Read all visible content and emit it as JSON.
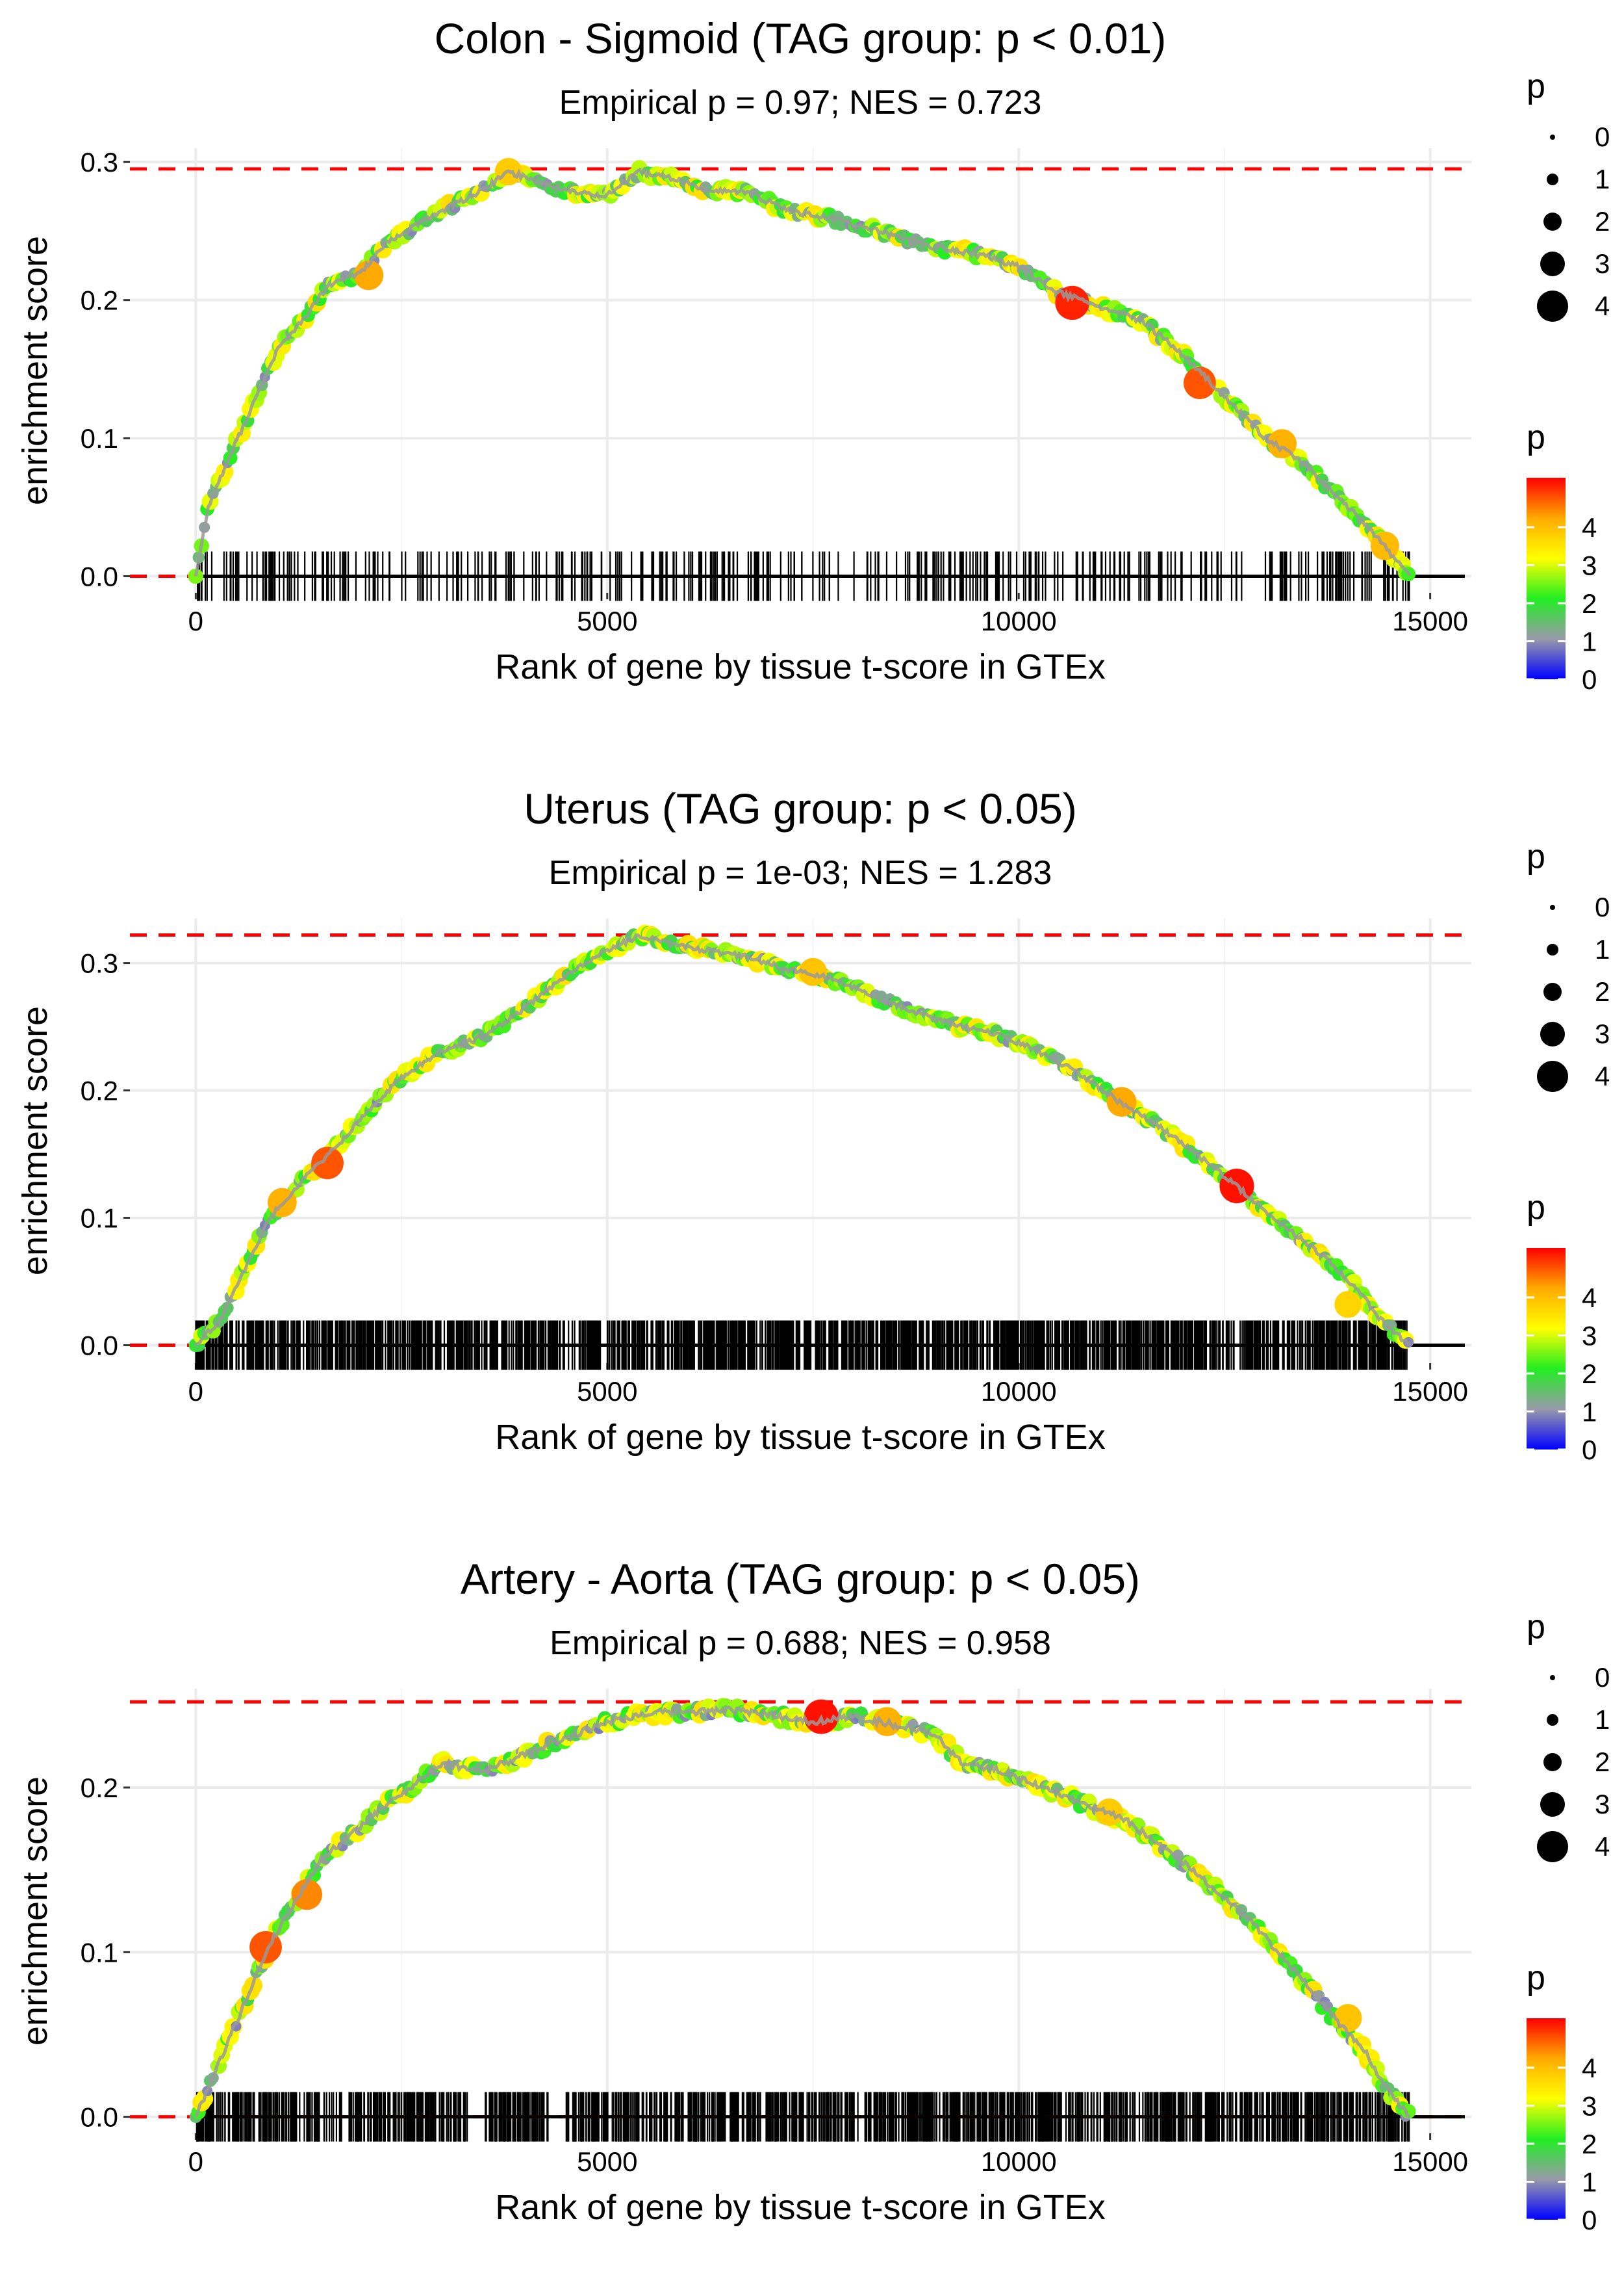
{
  "figure": {
    "description_kind": "three stacked GSEA-style enrichment plots"
  },
  "colors": {
    "gridline": "#ebebeb",
    "threshold_line": "#ff0000",
    "baseline": "#000000",
    "rug": "#000000",
    "trace_line": "#9a9a9a",
    "colorbar_stops": [
      "#0000ff",
      "#9999aa",
      "#22ee22",
      "#ffff00",
      "#ffaa00",
      "#ff0000"
    ]
  },
  "chart_data": [
    {
      "type": "line",
      "title": "Colon - Sigmoid (TAG group: p < 0.01)",
      "subtitle": "Empirical p = 0.97; NES = 0.723",
      "xlabel": "Rank of gene by tissue t-score in GTEx",
      "ylabel": "enrichment score",
      "xlim": [
        -800,
        15500
      ],
      "ylim": [
        -0.012,
        0.31
      ],
      "xticks": [
        0,
        5000,
        10000,
        15000
      ],
      "xtick_labels": [
        "0",
        "5000",
        "10000",
        "15000"
      ],
      "yticks": [
        0.0,
        0.1,
        0.2,
        0.3
      ],
      "ytick_labels": [
        "0.0",
        "0.1",
        "0.2",
        "0.3"
      ],
      "max_es": 0.295,
      "rug_density": "sparse",
      "rug_count": 380,
      "n_genes": 14750,
      "curve": [
        [
          0,
          0
        ],
        [
          150,
          0.05
        ],
        [
          400,
          0.085
        ],
        [
          700,
          0.125
        ],
        [
          1000,
          0.165
        ],
        [
          1300,
          0.185
        ],
        [
          1600,
          0.21
        ],
        [
          2000,
          0.22
        ],
        [
          2300,
          0.24
        ],
        [
          2700,
          0.255
        ],
        [
          3000,
          0.265
        ],
        [
          3500,
          0.28
        ],
        [
          3800,
          0.293
        ],
        [
          4200,
          0.285
        ],
        [
          4600,
          0.278
        ],
        [
          5000,
          0.276
        ],
        [
          5400,
          0.293
        ],
        [
          5800,
          0.288
        ],
        [
          6200,
          0.28
        ],
        [
          6700,
          0.278
        ],
        [
          7200,
          0.265
        ],
        [
          7800,
          0.258
        ],
        [
          8400,
          0.248
        ],
        [
          9000,
          0.238
        ],
        [
          9600,
          0.232
        ],
        [
          10000,
          0.224
        ],
        [
          10500,
          0.205
        ],
        [
          11000,
          0.195
        ],
        [
          11500,
          0.185
        ],
        [
          12000,
          0.16
        ],
        [
          12500,
          0.13
        ],
        [
          13000,
          0.1
        ],
        [
          13500,
          0.08
        ],
        [
          14000,
          0.05
        ],
        [
          14400,
          0.025
        ],
        [
          14750,
          0.0
        ]
      ],
      "highlights": [
        [
          10650,
          0.198,
          4.8
        ],
        [
          12200,
          0.14,
          4.5
        ],
        [
          13200,
          0.096,
          3.9
        ],
        [
          14450,
          0.022,
          3.8
        ],
        [
          2100,
          0.218,
          4.0
        ],
        [
          3800,
          0.293,
          3.6
        ]
      ],
      "legend_size": {
        "title": "p",
        "labels": [
          "0",
          "1",
          "2",
          "3",
          "4"
        ]
      },
      "legend_color": {
        "title": "p",
        "labels": [
          "4",
          "3",
          "2",
          "1",
          "0"
        ]
      }
    },
    {
      "type": "line",
      "title": "Uterus (TAG group: p < 0.05)",
      "subtitle": "Empirical p = 1e-03; NES = 1.283",
      "xlabel": "Rank of gene by tissue t-score in GTEx",
      "ylabel": "enrichment score",
      "xlim": [
        -800,
        15500
      ],
      "ylim": [
        -0.014,
        0.335
      ],
      "xticks": [
        0,
        5000,
        10000,
        15000
      ],
      "xtick_labels": [
        "0",
        "5000",
        "10000",
        "15000"
      ],
      "yticks": [
        0.0,
        0.1,
        0.2,
        0.3
      ],
      "ytick_labels": [
        "0.0",
        "0.1",
        "0.2",
        "0.3"
      ],
      "max_es": 0.322,
      "rug_density": "dense",
      "rug_count": 1500,
      "n_genes": 14750,
      "curve": [
        [
          0,
          0
        ],
        [
          300,
          0.02
        ],
        [
          600,
          0.06
        ],
        [
          900,
          0.1
        ],
        [
          1300,
          0.13
        ],
        [
          1700,
          0.155
        ],
        [
          2100,
          0.185
        ],
        [
          2500,
          0.21
        ],
        [
          2900,
          0.228
        ],
        [
          3400,
          0.24
        ],
        [
          3800,
          0.255
        ],
        [
          4200,
          0.275
        ],
        [
          4600,
          0.295
        ],
        [
          5000,
          0.31
        ],
        [
          5400,
          0.322
        ],
        [
          5800,
          0.315
        ],
        [
          6200,
          0.31
        ],
        [
          6700,
          0.305
        ],
        [
          7200,
          0.295
        ],
        [
          7700,
          0.288
        ],
        [
          8200,
          0.275
        ],
        [
          8700,
          0.262
        ],
        [
          9200,
          0.252
        ],
        [
          9700,
          0.245
        ],
        [
          10200,
          0.232
        ],
        [
          10700,
          0.215
        ],
        [
          11200,
          0.192
        ],
        [
          11700,
          0.172
        ],
        [
          12200,
          0.148
        ],
        [
          12700,
          0.122
        ],
        [
          13200,
          0.095
        ],
        [
          13700,
          0.07
        ],
        [
          14100,
          0.045
        ],
        [
          14400,
          0.02
        ],
        [
          14750,
          0.0
        ]
      ],
      "highlights": [
        [
          1050,
          0.112,
          3.9
        ],
        [
          1600,
          0.143,
          4.5
        ],
        [
          7500,
          0.293,
          3.7
        ],
        [
          11250,
          0.191,
          4.0
        ],
        [
          12650,
          0.125,
          4.9
        ],
        [
          14000,
          0.032,
          3.5
        ]
      ],
      "legend_size": {
        "title": "p",
        "labels": [
          "0",
          "1",
          "2",
          "3",
          "4"
        ]
      },
      "legend_color": {
        "title": "p",
        "labels": [
          "4",
          "3",
          "2",
          "1",
          "0"
        ]
      }
    },
    {
      "type": "line",
      "title": "Artery - Aorta (TAG group: p < 0.05)",
      "subtitle": "Empirical p = 0.688; NES = 0.958",
      "xlabel": "Rank of gene by tissue t-score in GTEx",
      "ylabel": "enrichment score",
      "xlim": [
        -800,
        15500
      ],
      "ylim": [
        -0.01,
        0.26
      ],
      "xticks": [
        0,
        5000,
        10000,
        15000
      ],
      "xtick_labels": [
        "0",
        "5000",
        "10000",
        "15000"
      ],
      "yticks": [
        0.0,
        0.1,
        0.2
      ],
      "ytick_labels": [
        "0.0",
        "0.1",
        "0.2"
      ],
      "max_es": 0.252,
      "rug_density": "dense",
      "rug_count": 1300,
      "n_genes": 14750,
      "curve": [
        [
          0,
          0
        ],
        [
          300,
          0.035
        ],
        [
          600,
          0.07
        ],
        [
          900,
          0.105
        ],
        [
          1200,
          0.13
        ],
        [
          1500,
          0.155
        ],
        [
          1800,
          0.168
        ],
        [
          2200,
          0.185
        ],
        [
          2600,
          0.2
        ],
        [
          3000,
          0.215
        ],
        [
          3500,
          0.21
        ],
        [
          4000,
          0.22
        ],
        [
          4500,
          0.23
        ],
        [
          5000,
          0.24
        ],
        [
          5500,
          0.245
        ],
        [
          6000,
          0.246
        ],
        [
          6500,
          0.247
        ],
        [
          7000,
          0.244
        ],
        [
          7500,
          0.24
        ],
        [
          8000,
          0.243
        ],
        [
          8500,
          0.238
        ],
        [
          9000,
          0.232
        ],
        [
          9300,
          0.215
        ],
        [
          9800,
          0.21
        ],
        [
          10300,
          0.2
        ],
        [
          10800,
          0.19
        ],
        [
          11300,
          0.18
        ],
        [
          11800,
          0.162
        ],
        [
          12300,
          0.142
        ],
        [
          12800,
          0.12
        ],
        [
          13300,
          0.092
        ],
        [
          13800,
          0.062
        ],
        [
          14200,
          0.04
        ],
        [
          14500,
          0.015
        ],
        [
          14750,
          0.0
        ]
      ],
      "highlights": [
        [
          850,
          0.103,
          4.5
        ],
        [
          1350,
          0.135,
          4.2
        ],
        [
          7600,
          0.243,
          4.9
        ],
        [
          8400,
          0.24,
          3.9
        ],
        [
          11100,
          0.185,
          3.6
        ],
        [
          14000,
          0.06,
          3.7
        ]
      ],
      "legend_size": {
        "title": "p",
        "labels": [
          "0",
          "1",
          "2",
          "3",
          "4"
        ]
      },
      "legend_color": {
        "title": "p",
        "labels": [
          "4",
          "3",
          "2",
          "1",
          "0"
        ]
      }
    }
  ]
}
